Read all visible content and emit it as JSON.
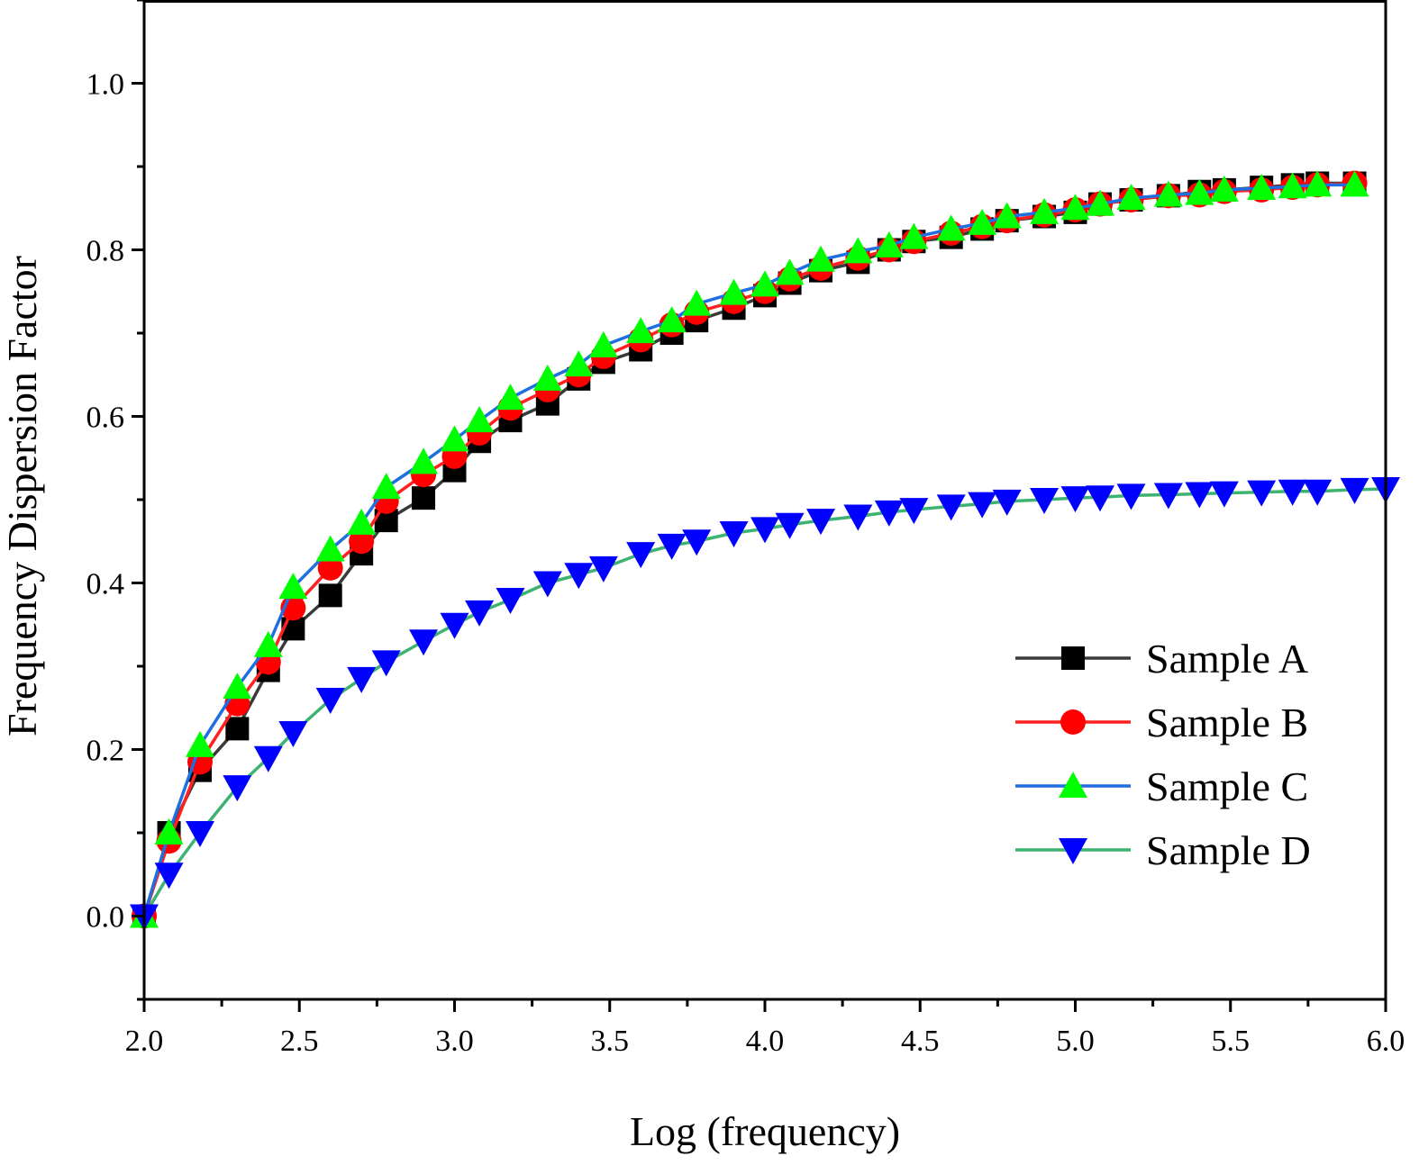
{
  "chart_data": {
    "type": "line",
    "xlabel": "Log (frequency)",
    "ylabel": "Frequency Dispersion Factor",
    "xlim": [
      2.0,
      6.0
    ],
    "ylim": [
      -0.1,
      1.1
    ],
    "xticks": [
      "2.0",
      "2.5",
      "3.0",
      "3.5",
      "4.0",
      "4.5",
      "5.0",
      "5.5",
      "6.0"
    ],
    "yticks": [
      "0.0",
      "0.2",
      "0.4",
      "0.6",
      "0.8",
      "1.0"
    ],
    "legend_position": "bottom-right",
    "series": [
      {
        "name": "Sample A",
        "color": "#3a3a3a",
        "marker_color": "#000000",
        "marker": "square",
        "x": [
          2.0,
          2.08,
          2.18,
          2.3,
          2.4,
          2.48,
          2.6,
          2.7,
          2.78,
          2.9,
          3.0,
          3.08,
          3.18,
          3.3,
          3.4,
          3.48,
          3.6,
          3.7,
          3.78,
          3.9,
          4.0,
          4.08,
          4.18,
          4.3,
          4.4,
          4.48,
          4.6,
          4.7,
          4.78,
          4.9,
          5.0,
          5.08,
          5.18,
          5.3,
          5.4,
          5.48,
          5.6,
          5.7,
          5.78,
          5.9
        ],
        "y": [
          0.0,
          0.1,
          0.175,
          0.225,
          0.295,
          0.345,
          0.385,
          0.435,
          0.475,
          0.502,
          0.535,
          0.57,
          0.595,
          0.615,
          0.645,
          0.665,
          0.68,
          0.7,
          0.715,
          0.73,
          0.745,
          0.76,
          0.775,
          0.785,
          0.8,
          0.81,
          0.815,
          0.825,
          0.835,
          0.84,
          0.845,
          0.855,
          0.86,
          0.865,
          0.87,
          0.872,
          0.875,
          0.878,
          0.88,
          0.88
        ]
      },
      {
        "name": "Sample B",
        "color": "#ff2020",
        "marker_color": "#ff0000",
        "marker": "circle",
        "x": [
          2.0,
          2.08,
          2.18,
          2.3,
          2.4,
          2.48,
          2.6,
          2.7,
          2.78,
          2.9,
          3.0,
          3.08,
          3.18,
          3.3,
          3.4,
          3.48,
          3.6,
          3.7,
          3.78,
          3.9,
          4.0,
          4.08,
          4.18,
          4.3,
          4.4,
          4.48,
          4.6,
          4.7,
          4.78,
          4.9,
          5.0,
          5.08,
          5.18,
          5.3,
          5.4,
          5.48,
          5.6,
          5.7,
          5.78,
          5.9
        ],
        "y": [
          0.0,
          0.09,
          0.185,
          0.255,
          0.305,
          0.37,
          0.418,
          0.45,
          0.498,
          0.53,
          0.552,
          0.58,
          0.61,
          0.632,
          0.65,
          0.672,
          0.692,
          0.71,
          0.725,
          0.738,
          0.75,
          0.765,
          0.778,
          0.79,
          0.8,
          0.81,
          0.82,
          0.828,
          0.835,
          0.842,
          0.848,
          0.855,
          0.86,
          0.865,
          0.866,
          0.87,
          0.872,
          0.875,
          0.878,
          0.88
        ]
      },
      {
        "name": "Sample C",
        "color": "#1f6fe0",
        "marker_color": "#00ff00",
        "marker": "triangle-up",
        "x": [
          2.0,
          2.08,
          2.18,
          2.3,
          2.4,
          2.48,
          2.6,
          2.7,
          2.78,
          2.9,
          3.0,
          3.08,
          3.18,
          3.3,
          3.4,
          3.48,
          3.6,
          3.7,
          3.78,
          3.9,
          4.0,
          4.08,
          4.18,
          4.3,
          4.4,
          4.48,
          4.6,
          4.7,
          4.78,
          4.9,
          5.0,
          5.08,
          5.18,
          5.3,
          5.4,
          5.48,
          5.6,
          5.7,
          5.78,
          5.9
        ],
        "y": [
          0.0,
          0.1,
          0.205,
          0.275,
          0.325,
          0.395,
          0.44,
          0.472,
          0.515,
          0.545,
          0.572,
          0.595,
          0.622,
          0.645,
          0.662,
          0.685,
          0.702,
          0.715,
          0.735,
          0.748,
          0.758,
          0.772,
          0.788,
          0.798,
          0.805,
          0.815,
          0.825,
          0.832,
          0.84,
          0.845,
          0.85,
          0.855,
          0.862,
          0.866,
          0.868,
          0.872,
          0.874,
          0.876,
          0.878,
          0.878
        ]
      },
      {
        "name": "Sample D",
        "color": "#3cb371",
        "marker_color": "#0000ff",
        "marker": "triangle-down",
        "x": [
          2.0,
          2.08,
          2.18,
          2.3,
          2.4,
          2.48,
          2.6,
          2.7,
          2.78,
          2.9,
          3.0,
          3.08,
          3.18,
          3.3,
          3.4,
          3.48,
          3.6,
          3.7,
          3.78,
          3.9,
          4.0,
          4.08,
          4.18,
          4.3,
          4.4,
          4.48,
          4.6,
          4.7,
          4.78,
          4.9,
          5.0,
          5.08,
          5.18,
          5.3,
          5.4,
          5.48,
          5.6,
          5.7,
          5.78,
          5.9,
          6.0
        ],
        "y": [
          0.0,
          0.05,
          0.1,
          0.155,
          0.19,
          0.22,
          0.26,
          0.285,
          0.305,
          0.33,
          0.35,
          0.365,
          0.38,
          0.4,
          0.41,
          0.418,
          0.435,
          0.445,
          0.45,
          0.46,
          0.465,
          0.47,
          0.475,
          0.48,
          0.485,
          0.488,
          0.492,
          0.495,
          0.498,
          0.5,
          0.502,
          0.503,
          0.505,
          0.506,
          0.507,
          0.508,
          0.509,
          0.51,
          0.51,
          0.512,
          0.513
        ]
      }
    ]
  }
}
